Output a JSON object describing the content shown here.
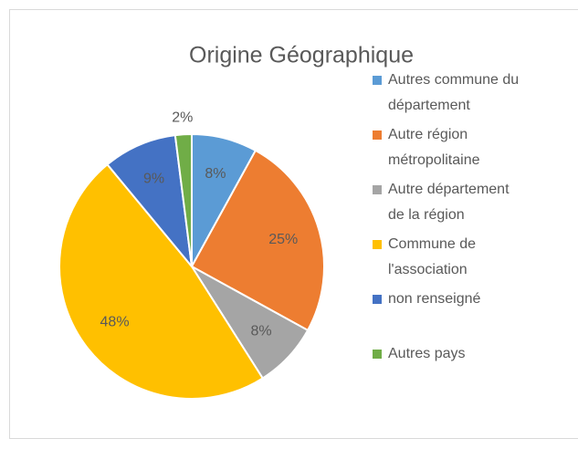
{
  "chart_data": {
    "type": "pie",
    "title": "Origine Géographique",
    "categories": [
      "Autres commune du département",
      "Autre région métropolitaine",
      "Autre département de la région",
      "Commune de l'association",
      "non renseigné",
      "Autres pays"
    ],
    "values": [
      8,
      25,
      8,
      48,
      9,
      2
    ],
    "value_labels": [
      "8%",
      "25%",
      "8%",
      "48%",
      "9%",
      "2%"
    ],
    "colors": [
      "#5B9BD5",
      "#ED7D31",
      "#A5A5A5",
      "#FFC000",
      "#4472C4",
      "#70AD47"
    ],
    "legend": "right"
  }
}
